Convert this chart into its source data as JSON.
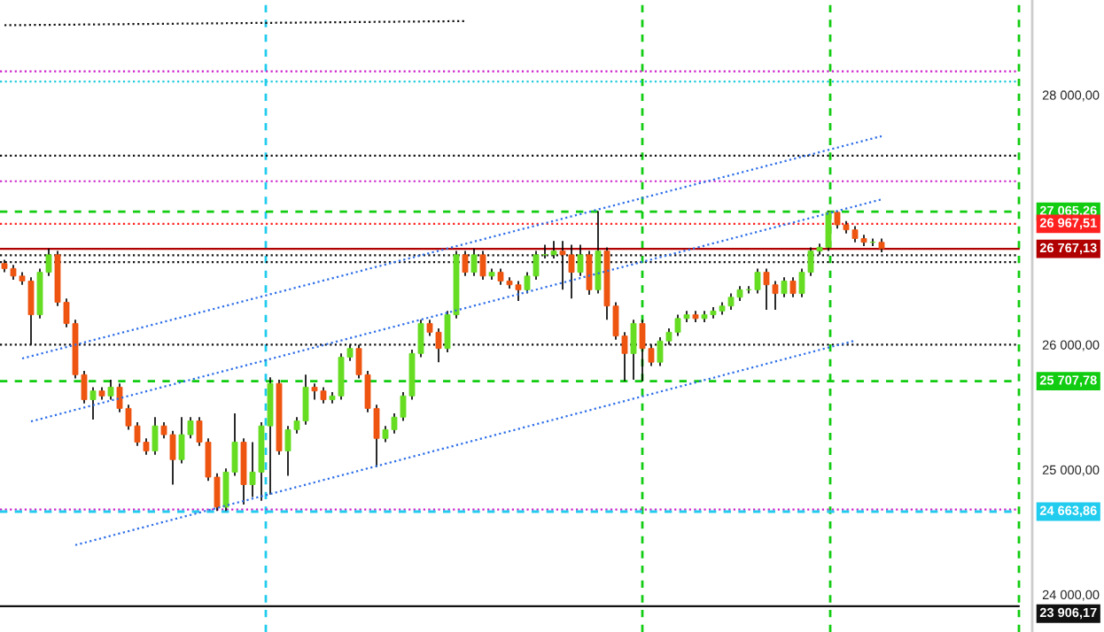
{
  "chart_data": {
    "type": "candlestick",
    "categories": [
      null,
      null,
      null,
      null,
      null,
      null,
      null,
      null,
      null,
      null,
      null,
      null,
      null,
      null,
      null,
      null,
      null,
      null,
      null,
      null,
      null,
      null,
      null,
      null,
      null,
      null,
      null,
      null,
      null,
      null,
      null,
      null,
      null,
      null,
      null,
      null,
      null,
      null,
      null,
      null,
      null,
      null,
      null,
      null,
      null,
      null,
      null,
      null,
      null,
      null,
      null,
      null,
      null,
      null,
      null,
      null,
      null,
      null,
      null,
      null,
      null,
      null,
      null,
      null,
      null,
      null,
      null,
      null,
      null,
      null,
      null,
      null,
      null,
      null,
      null,
      null,
      null,
      null,
      null,
      null,
      null,
      null,
      null,
      null,
      null,
      null,
      null,
      null,
      null,
      null,
      null,
      null,
      null,
      null,
      null,
      null,
      null,
      null,
      null,
      null
    ],
    "ohlc": [
      [
        26650,
        26680,
        26580,
        26610
      ],
      [
        26610,
        26640,
        26520,
        26550
      ],
      [
        26550,
        26580,
        26480,
        26510
      ],
      [
        26510,
        26540,
        26000,
        26240
      ],
      [
        26240,
        26610,
        26210,
        26580
      ],
      [
        26580,
        26770,
        26550,
        26720
      ],
      [
        26720,
        26750,
        26310,
        26340
      ],
      [
        26340,
        26370,
        26140,
        26170
      ],
      [
        26170,
        26200,
        25730,
        25760
      ],
      [
        25760,
        25790,
        25530,
        25560
      ],
      [
        25560,
        25660,
        25400,
        25630
      ],
      [
        25630,
        25660,
        25560,
        25590
      ],
      [
        25590,
        25720,
        25560,
        25660
      ],
      [
        25660,
        25690,
        25460,
        25490
      ],
      [
        25490,
        25520,
        25320,
        25350
      ],
      [
        25350,
        25380,
        25190,
        25220
      ],
      [
        25220,
        25250,
        25120,
        25150
      ],
      [
        25150,
        25420,
        25120,
        25350
      ],
      [
        25350,
        25380,
        25250,
        25280
      ],
      [
        25280,
        25310,
        24880,
        25080
      ],
      [
        25080,
        25420,
        25050,
        25280
      ],
      [
        25280,
        25420,
        25250,
        25390
      ],
      [
        25390,
        25420,
        25190,
        25220
      ],
      [
        25220,
        25250,
        24910,
        24940
      ],
      [
        24940,
        24970,
        24670,
        24700
      ],
      [
        24700,
        25010,
        24670,
        24980
      ],
      [
        24980,
        25450,
        24950,
        25220
      ],
      [
        25220,
        25250,
        24720,
        24880
      ],
      [
        24880,
        25220,
        24780,
        24980
      ],
      [
        24980,
        25380,
        24750,
        25350
      ],
      [
        25350,
        25740,
        24800,
        25690
      ],
      [
        25690,
        25720,
        25120,
        25150
      ],
      [
        25150,
        25350,
        24950,
        25320
      ],
      [
        25320,
        25420,
        25290,
        25390
      ],
      [
        25390,
        25760,
        25360,
        25660
      ],
      [
        25660,
        25690,
        25560,
        25630
      ],
      [
        25630,
        25660,
        25530,
        25560
      ],
      [
        25560,
        25620,
        25530,
        25590
      ],
      [
        25590,
        25930,
        25560,
        25900
      ],
      [
        25900,
        26000,
        25870,
        25970
      ],
      [
        25970,
        26000,
        25730,
        25760
      ],
      [
        25760,
        25790,
        25460,
        25490
      ],
      [
        25490,
        25520,
        25020,
        25250
      ],
      [
        25250,
        25350,
        25220,
        25320
      ],
      [
        25320,
        25450,
        25290,
        25420
      ],
      [
        25420,
        25620,
        25390,
        25590
      ],
      [
        25590,
        25960,
        25560,
        25930
      ],
      [
        25930,
        26200,
        25900,
        26170
      ],
      [
        26170,
        26200,
        26070,
        26100
      ],
      [
        26100,
        26130,
        25860,
        25970
      ],
      [
        25970,
        26270,
        25940,
        26240
      ],
      [
        26240,
        26750,
        26210,
        26720
      ],
      [
        26720,
        26750,
        26550,
        26580
      ],
      [
        26580,
        26770,
        26550,
        26720
      ],
      [
        26720,
        26750,
        26520,
        26550
      ],
      [
        26550,
        26610,
        26520,
        26580
      ],
      [
        26580,
        26610,
        26480,
        26510
      ],
      [
        26510,
        26540,
        26450,
        26480
      ],
      [
        26480,
        26510,
        26350,
        26440
      ],
      [
        26440,
        26580,
        26410,
        26550
      ],
      [
        26550,
        26750,
        26520,
        26720
      ],
      [
        26720,
        26800,
        26690,
        26720
      ],
      [
        26720,
        26830,
        26690,
        26750
      ],
      [
        26750,
        26830,
        26440,
        26720
      ],
      [
        26720,
        26800,
        26370,
        26580
      ],
      [
        26580,
        26800,
        26550,
        26720
      ],
      [
        26720,
        26750,
        26400,
        26440
      ],
      [
        26440,
        27070,
        26410,
        26750
      ],
      [
        26750,
        26780,
        26200,
        26310
      ],
      [
        26310,
        26340,
        26040,
        26070
      ],
      [
        26070,
        26100,
        25710,
        25930
      ],
      [
        25930,
        26200,
        25720,
        26170
      ],
      [
        26170,
        26200,
        25710,
        25970
      ],
      [
        25970,
        26000,
        25830,
        25860
      ],
      [
        25860,
        26060,
        25830,
        26030
      ],
      [
        26030,
        26130,
        26000,
        26100
      ],
      [
        26100,
        26240,
        26070,
        26210
      ],
      [
        26210,
        26270,
        26180,
        26240
      ],
      [
        26240,
        26270,
        26180,
        26210
      ],
      [
        26210,
        26270,
        26180,
        26240
      ],
      [
        26240,
        26300,
        26210,
        26270
      ],
      [
        26270,
        26340,
        26240,
        26310
      ],
      [
        26310,
        26410,
        26280,
        26380
      ],
      [
        26380,
        26470,
        26350,
        26440
      ],
      [
        26440,
        26470,
        26410,
        26440
      ],
      [
        26440,
        26610,
        26410,
        26580
      ],
      [
        26580,
        26610,
        26280,
        26480
      ],
      [
        26480,
        26510,
        26280,
        26410
      ],
      [
        26410,
        26540,
        26380,
        26510
      ],
      [
        26510,
        26540,
        26380,
        26410
      ],
      [
        26410,
        26610,
        26380,
        26580
      ],
      [
        26580,
        26780,
        26550,
        26750
      ],
      [
        26750,
        26810,
        26720,
        26780
      ],
      [
        26780,
        27070,
        26750,
        27060
      ],
      [
        27060,
        27070,
        26930,
        26960
      ],
      [
        26960,
        26990,
        26890,
        26920
      ],
      [
        26920,
        26950,
        26820,
        26850
      ],
      [
        26850,
        26880,
        26790,
        26820
      ],
      [
        26820,
        26850,
        26790,
        26820
      ],
      [
        26820,
        26850,
        26740,
        26770
      ]
    ],
    "series": [
      {
        "type": "line",
        "color": "#2f6fe8",
        "line_style": "dotted",
        "values": [
          null,
          null,
          25890,
          25908,
          25926,
          25945,
          25963,
          25981,
          26000,
          26018,
          26037,
          26055,
          26073,
          26092,
          26110,
          26128,
          26147,
          26165,
          26183,
          26202,
          26220,
          26238,
          26257,
          26275,
          26294,
          26312,
          26330,
          26349,
          26367,
          26385,
          26404,
          26422,
          26440,
          26459,
          26477,
          26495,
          26514,
          26532,
          26550,
          26569,
          26587,
          26606,
          26624,
          26642,
          26661,
          26679,
          26697,
          26716,
          26734,
          26752,
          26771,
          26789,
          26807,
          26826,
          26844,
          26863,
          26881,
          26899,
          26918,
          26936,
          26954,
          26973,
          26991,
          27009,
          27028,
          27046,
          27064,
          27083,
          27101,
          27119,
          27138,
          27156,
          27175,
          27193,
          27211,
          27230,
          27248,
          27266,
          27285,
          27303,
          27321,
          27340,
          27358,
          27376,
          27395,
          27413,
          27432,
          27450,
          27468,
          27487,
          27505,
          27523,
          27542,
          27560,
          27578,
          27597,
          27615,
          27633,
          27652,
          27670
        ]
      },
      {
        "type": "line",
        "color": "#2f6fe8",
        "line_style": "dotted",
        "values": [
          null,
          null,
          null,
          25386,
          25404,
          25423,
          25441,
          25460,
          25479,
          25497,
          25516,
          25534,
          25553,
          25571,
          25590,
          25608,
          25627,
          25645,
          25664,
          25682,
          25701,
          25719,
          25738,
          25756,
          25775,
          25793,
          25812,
          25830,
          25849,
          25867,
          25886,
          25904,
          25923,
          25941,
          25960,
          25978,
          25997,
          26016,
          26034,
          26053,
          26071,
          26090,
          26108,
          26127,
          26145,
          26164,
          26182,
          26201,
          26219,
          26238,
          26256,
          26275,
          26293,
          26312,
          26330,
          26349,
          26367,
          26386,
          26404,
          26423,
          26441,
          26460,
          26478,
          26497,
          26515,
          26534,
          26553,
          26571,
          26590,
          26608,
          26627,
          26645,
          26664,
          26682,
          26701,
          26719,
          26738,
          26756,
          26775,
          26793,
          26812,
          26830,
          26849,
          26867,
          26886,
          26904,
          26923,
          26941,
          26960,
          26978,
          26997,
          27015,
          27034,
          27052,
          27071,
          27090,
          27108,
          27127,
          27145,
          27164
        ]
      },
      {
        "type": "line",
        "color": "#2f6fe8",
        "line_style": "dotted",
        "values": [
          null,
          null,
          null,
          null,
          null,
          null,
          null,
          null,
          24396,
          24414,
          24433,
          24451,
          24470,
          24489,
          24507,
          24526,
          24544,
          24563,
          24582,
          24600,
          24619,
          24637,
          24656,
          24675,
          24693,
          24712,
          24731,
          24749,
          24768,
          24786,
          24805,
          24824,
          24842,
          24861,
          24879,
          24898,
          24917,
          24935,
          24954,
          24972,
          24991,
          25010,
          25028,
          25047,
          25065,
          25084,
          25103,
          25121,
          25140,
          25159,
          25177,
          25196,
          25214,
          25233,
          25252,
          25270,
          25289,
          25307,
          25326,
          25345,
          25363,
          25382,
          25400,
          25419,
          25438,
          25456,
          25475,
          25494,
          25512,
          25531,
          25549,
          25568,
          25587,
          25605,
          25624,
          25642,
          25661,
          25680,
          25698,
          25717,
          25735,
          25754,
          25773,
          25791,
          25810,
          25828,
          25847,
          25866,
          25884,
          25903,
          25921,
          25940,
          25959,
          25977,
          25996,
          26014,
          26033,
          null,
          null,
          null
        ]
      },
      {
        "type": "line",
        "color": "#111111",
        "line_style": "dotted",
        "values": [
          28558,
          28559,
          28559,
          28560,
          28561,
          28561,
          28562,
          28562,
          28563,
          28564,
          28564,
          28565,
          28566,
          28566,
          28567,
          28568,
          28568,
          28569,
          28570,
          28570,
          28571,
          28571,
          28572,
          28573,
          28573,
          28574,
          28575,
          28575,
          28576,
          28577,
          28577,
          28578,
          28578,
          28579,
          28580,
          28580,
          28581,
          28582,
          28582,
          28583,
          28584,
          28584,
          28585,
          28586,
          28586,
          28587,
          28587,
          28588,
          28589,
          28589,
          28590,
          28591,
          28591,
          null,
          null,
          null,
          null,
          null,
          null,
          null,
          null,
          null,
          null,
          null,
          null,
          null,
          null,
          null,
          null,
          null,
          null,
          null,
          null,
          null,
          null,
          null,
          null,
          null,
          null,
          null,
          null,
          null,
          null,
          null,
          null,
          null,
          null,
          null,
          null,
          null,
          null,
          null,
          null,
          null,
          null,
          null,
          null,
          null,
          null,
          null
        ]
      }
    ],
    "ylim": [
      23700,
      28760
    ],
    "yticks": [
      {
        "value": 24000,
        "label": "24 000,00"
      },
      {
        "value": 25000,
        "label": "25 000,00"
      },
      {
        "value": 26000,
        "label": "26 000,00"
      },
      {
        "value": 28000,
        "label": "28 000,00"
      }
    ],
    "tick_labels": "y",
    "grid": false,
    "legend": false,
    "ref_lines": [
      {
        "axis": "y",
        "value": 28189,
        "color": "#cc22cc",
        "line_style": "dotted"
      },
      {
        "axis": "y",
        "value": 28107,
        "color": "#22ccdd",
        "line_style": "dotted"
      },
      {
        "axis": "y",
        "value": 27514,
        "color": "#111111",
        "line_style": "dotted"
      },
      {
        "axis": "y",
        "value": 27309,
        "color": "#cc22cc",
        "line_style": "dotted"
      },
      {
        "axis": "y",
        "value": 27065.26,
        "label": "27 065,26",
        "color": "#11cc11",
        "line_style": "dashed"
      },
      {
        "axis": "y",
        "value": 26967.51,
        "label": "26 967,51",
        "color": "#ff2020",
        "line_style": "dotted"
      },
      {
        "axis": "y",
        "value": 26767.13,
        "label": "26 767,13",
        "color": "#b00000",
        "line_style": "solid"
      },
      {
        "axis": "y",
        "value": 26716,
        "color": "#111111",
        "line_style": "dotted"
      },
      {
        "axis": "y",
        "value": 26662,
        "color": "#111111",
        "line_style": "dotted"
      },
      {
        "axis": "y",
        "value": 26000,
        "color": "#111111",
        "line_style": "dotted"
      },
      {
        "axis": "y",
        "value": 25707.78,
        "label": "25 707,78",
        "color": "#11cc11",
        "line_style": "dashed"
      },
      {
        "axis": "y",
        "value": 24680,
        "color": "#cc22cc",
        "line_style": "dotted"
      },
      {
        "axis": "y",
        "value": 24663.86,
        "label": "24 663,86",
        "color": "#22ccee",
        "line_style": "dashed"
      },
      {
        "axis": "y",
        "value": 23906.17,
        "label": "23 906,17",
        "color": "#111111",
        "line_style": "solid"
      }
    ]
  }
}
